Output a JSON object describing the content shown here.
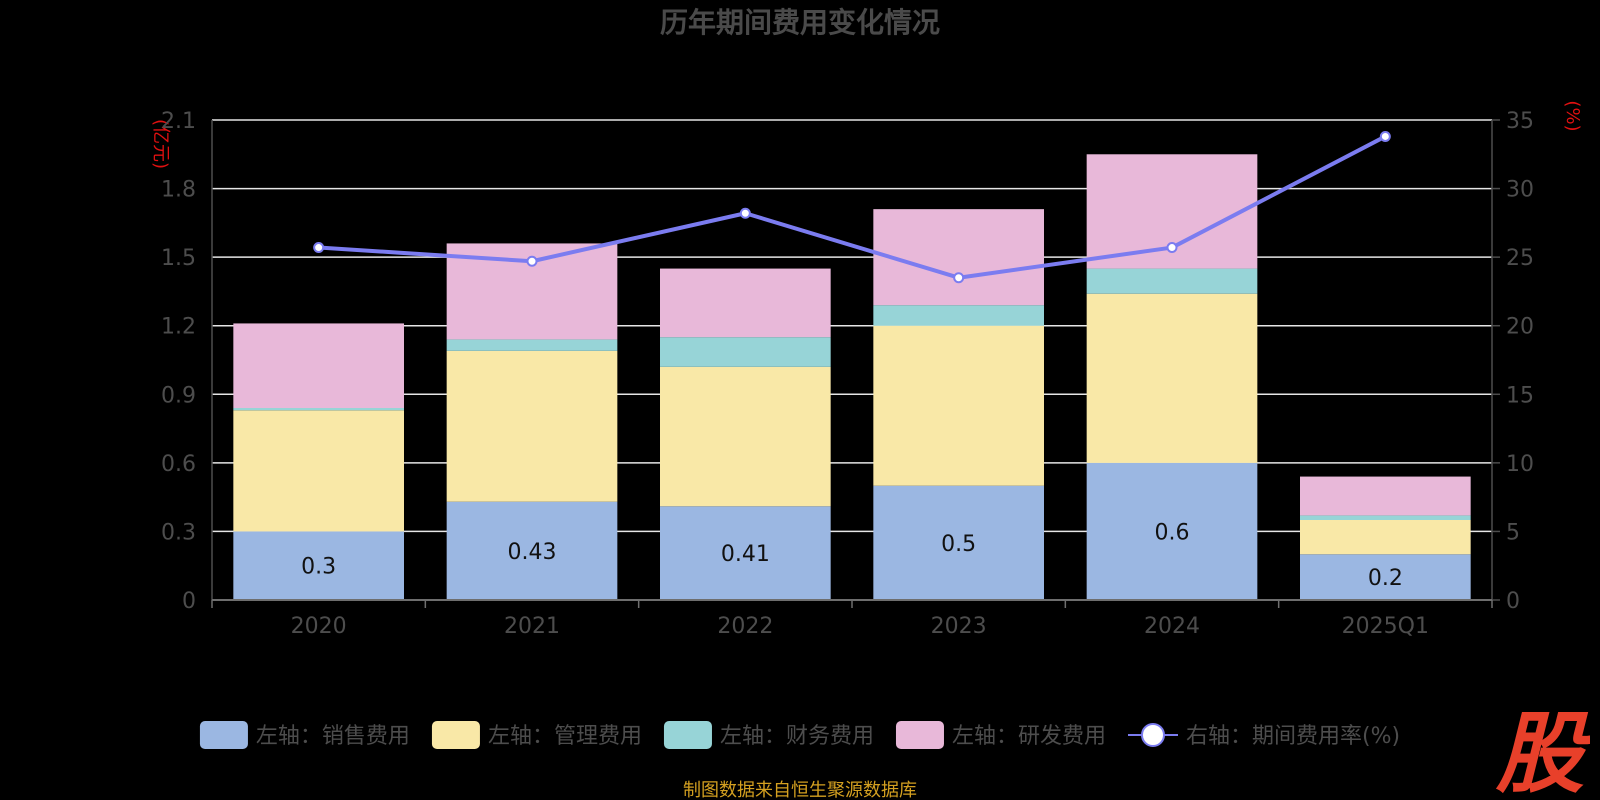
{
  "chart_data": {
    "type": "bar",
    "stacked": true,
    "title": "历年期间费用变化情况",
    "y_left_unit": "(亿元)",
    "y_right_unit": "(%)",
    "categories": [
      "2020",
      "2021",
      "2022",
      "2023",
      "2024",
      "2025Q1"
    ],
    "y_left_ticks": [
      "0",
      "0.3",
      "0.6",
      "0.9",
      "1.2",
      "1.5",
      "1.8",
      "2.1"
    ],
    "y_right_ticks": [
      "0",
      "5",
      "10",
      "15",
      "20",
      "25",
      "30",
      "35"
    ],
    "ylim_left": [
      0,
      2.1
    ],
    "ylim_right": [
      0,
      35
    ],
    "grid": true,
    "legend_position": "bottom",
    "series": [
      {
        "name": "左轴：销售费用",
        "axis": "left",
        "color": "#9bb7e2",
        "values": [
          0.3,
          0.43,
          0.41,
          0.5,
          0.6,
          0.2
        ],
        "labels": [
          "0.3",
          "0.43",
          "0.41",
          "0.5",
          "0.6",
          "0.2"
        ]
      },
      {
        "name": "左轴：管理费用",
        "axis": "left",
        "color": "#f9e8a7",
        "values": [
          0.53,
          0.66,
          0.61,
          0.7,
          0.74,
          0.15
        ]
      },
      {
        "name": "左轴：财务费用",
        "axis": "left",
        "color": "#97d4d7",
        "values": [
          0.01,
          0.05,
          0.13,
          0.09,
          0.11,
          0.02
        ]
      },
      {
        "name": "左轴：研发费用",
        "axis": "left",
        "color": "#e8b8d9",
        "values": [
          0.37,
          0.42,
          0.3,
          0.42,
          0.5,
          0.17
        ]
      },
      {
        "name": "右轴：期间费用率(%)",
        "axis": "right",
        "type": "line",
        "color": "#7b7cf0",
        "values": [
          25.7,
          24.7,
          28.2,
          23.5,
          25.7,
          33.8
        ]
      }
    ]
  },
  "footer": {
    "source": "制图数据来自恒生聚源数据库"
  },
  "watermark": {
    "text": "股"
  }
}
